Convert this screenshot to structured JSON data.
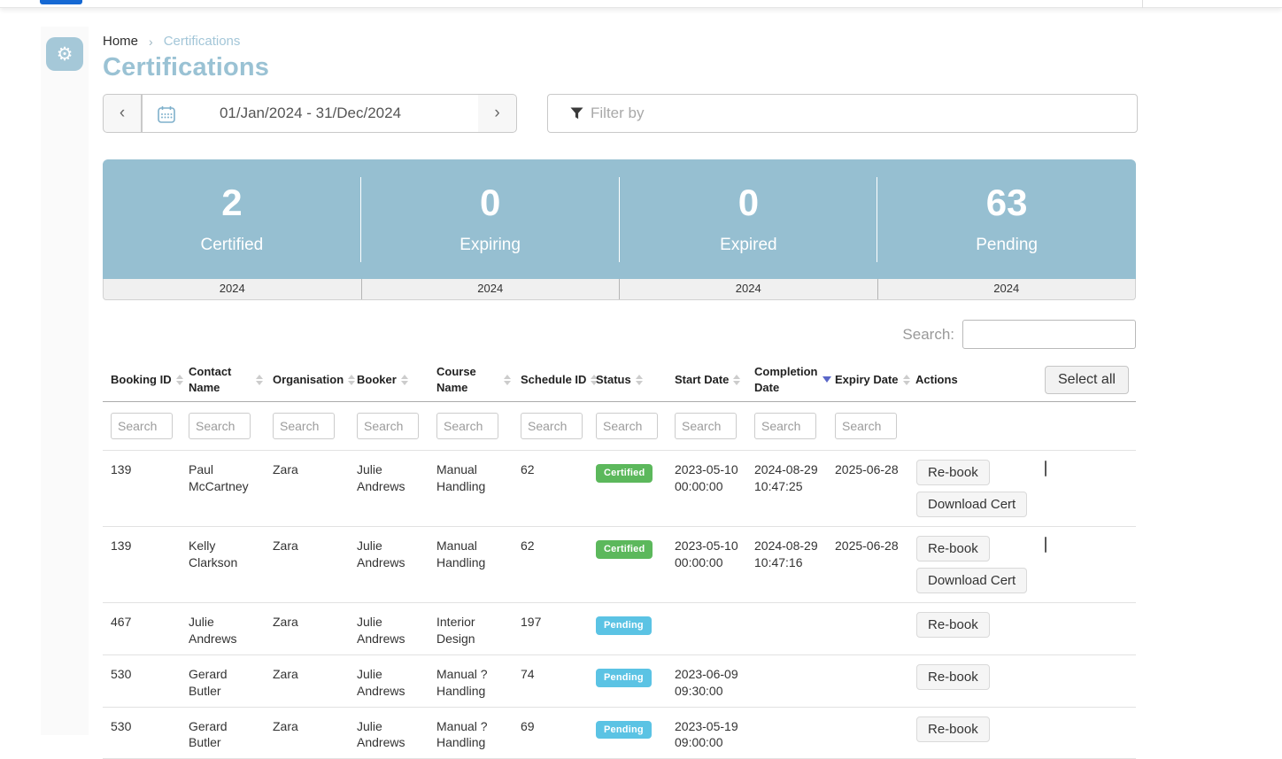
{
  "theme": {
    "accent_blue": "#96bfd1",
    "badge_certified_color": "#5cb85c",
    "badge_pending_color": "#5bc3e4",
    "active_sort_color": "#5a67c8",
    "topbar_pill_color": "#1568d3"
  },
  "breadcrumb": {
    "home": "Home",
    "separator": "›",
    "current": "Certifications"
  },
  "page": {
    "title": "Certifications"
  },
  "date_nav": {
    "prev": "‹",
    "next": "›",
    "range": "01/Jan/2024 - 31/Dec/2024"
  },
  "filter": {
    "placeholder": "Filter by"
  },
  "stats": {
    "items": [
      {
        "value": "2",
        "label": "Certified",
        "year": "2024"
      },
      {
        "value": "0",
        "label": "Expiring",
        "year": "2024"
      },
      {
        "value": "0",
        "label": "Expired",
        "year": "2024"
      },
      {
        "value": "63",
        "label": "Pending",
        "year": "2024"
      }
    ]
  },
  "search": {
    "label": "Search:",
    "value": ""
  },
  "table": {
    "select_all_label": "Select all",
    "column_search_placeholder": "Search",
    "columns": [
      {
        "key": "booking_id",
        "label": "Booking ID",
        "sort": "both",
        "wrap": false,
        "searchable": true
      },
      {
        "key": "contact_name",
        "label": "Contact Name",
        "sort": "both",
        "wrap": true,
        "searchable": true
      },
      {
        "key": "organisation",
        "label": "Organisation",
        "sort": "both",
        "wrap": false,
        "searchable": true
      },
      {
        "key": "booker",
        "label": "Booker",
        "sort": "both",
        "wrap": false,
        "searchable": true
      },
      {
        "key": "course_name",
        "label": "Course Name",
        "sort": "both",
        "wrap": true,
        "searchable": true
      },
      {
        "key": "schedule_id",
        "label": "Schedule ID",
        "sort": "both",
        "wrap": false,
        "searchable": true
      },
      {
        "key": "status",
        "label": "Status",
        "sort": "both",
        "wrap": false,
        "searchable": true
      },
      {
        "key": "start_date",
        "label": "Start Date",
        "sort": "both",
        "wrap": false,
        "searchable": true
      },
      {
        "key": "completion_date",
        "label": "Completion Date",
        "sort": "desc",
        "wrap": true,
        "searchable": true
      },
      {
        "key": "expiry_date",
        "label": "Expiry Date",
        "sort": "both",
        "wrap": false,
        "searchable": true
      },
      {
        "key": "actions",
        "label": "Actions",
        "sort": "none",
        "wrap": false,
        "searchable": false
      },
      {
        "key": "select",
        "label": "",
        "sort": "none",
        "wrap": false,
        "searchable": false
      }
    ],
    "rows": [
      {
        "booking_id": "139",
        "contact_name": "Paul McCartney",
        "organisation": "Zara",
        "booker": "Julie Andrews",
        "course_name": "Manual Handling",
        "schedule_id": "62",
        "status": "Certified",
        "start_date": "2023-05-10 00:00:00",
        "completion_date": "2024-08-29 10:47:25",
        "expiry_date": "2025-06-28",
        "actions": [
          "Re-book",
          "Download Cert"
        ],
        "selectable": true
      },
      {
        "booking_id": "139",
        "contact_name": "Kelly Clarkson",
        "organisation": "Zara",
        "booker": "Julie Andrews",
        "course_name": "Manual Handling",
        "schedule_id": "62",
        "status": "Certified",
        "start_date": "2023-05-10 00:00:00",
        "completion_date": "2024-08-29 10:47:16",
        "expiry_date": "2025-06-28",
        "actions": [
          "Re-book",
          "Download Cert"
        ],
        "selectable": true
      },
      {
        "booking_id": "467",
        "contact_name": "Julie Andrews",
        "organisation": "Zara",
        "booker": "Julie Andrews",
        "course_name": "Interior Design",
        "schedule_id": "197",
        "status": "Pending",
        "start_date": "",
        "completion_date": "",
        "expiry_date": "",
        "actions": [
          "Re-book"
        ],
        "selectable": false
      },
      {
        "booking_id": "530",
        "contact_name": "Gerard Butler",
        "organisation": "Zara",
        "booker": "Julie Andrews",
        "course_name": "Manual ? Handling",
        "schedule_id": "74",
        "status": "Pending",
        "start_date": "2023-06-09 09:30:00",
        "completion_date": "",
        "expiry_date": "",
        "actions": [
          "Re-book"
        ],
        "selectable": false
      },
      {
        "booking_id": "530",
        "contact_name": "Gerard Butler",
        "organisation": "Zara",
        "booker": "Julie Andrews",
        "course_name": "Manual ? Handling",
        "schedule_id": "69",
        "status": "Pending",
        "start_date": "2023-05-19 09:00:00",
        "completion_date": "",
        "expiry_date": "",
        "actions": [
          "Re-book"
        ],
        "selectable": false
      }
    ]
  }
}
